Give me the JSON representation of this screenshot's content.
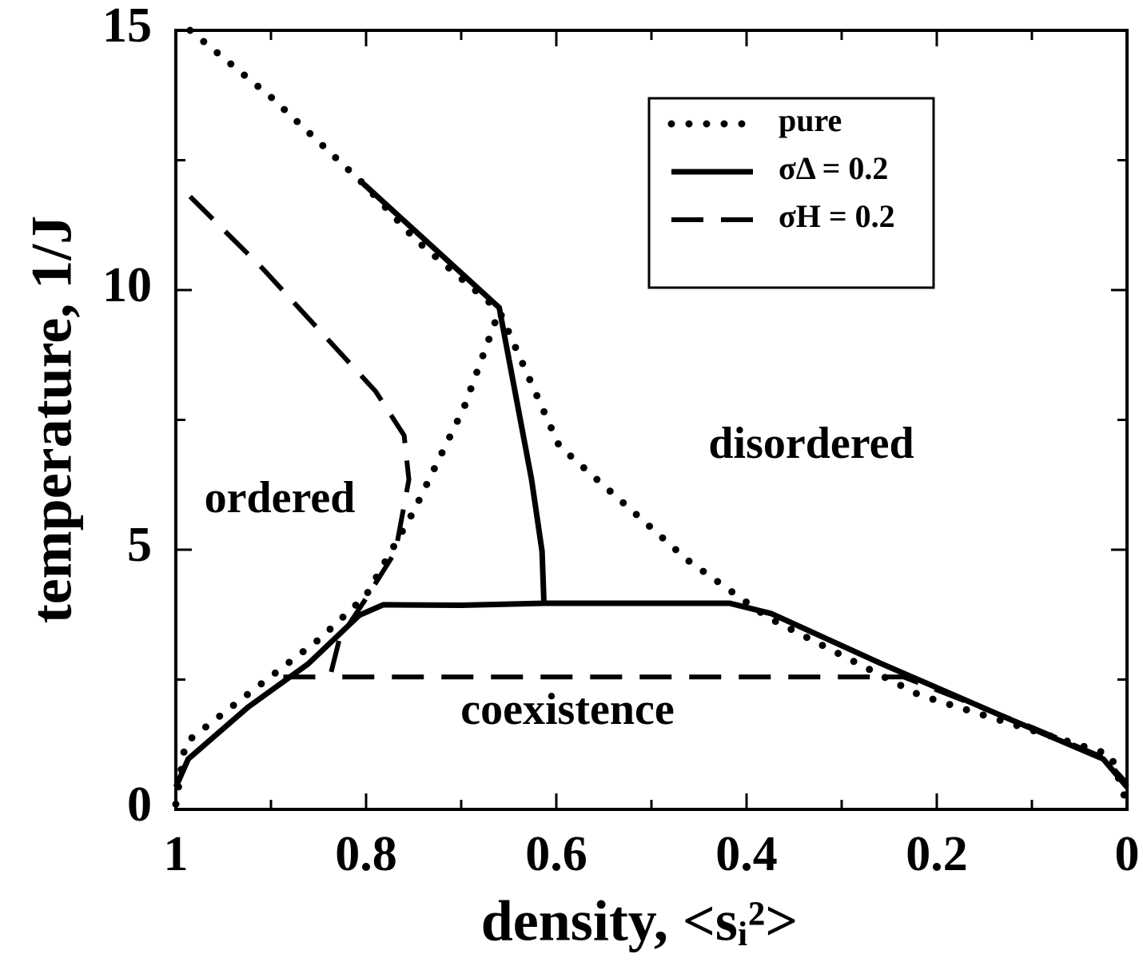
{
  "chart_data": {
    "type": "line",
    "x_label": "density, <sᵢ²>",
    "y_label": "temperature, 1/J",
    "xlim": [
      1,
      0
    ],
    "ylim": [
      0,
      15
    ],
    "xticks": [
      1,
      0.8,
      0.6,
      0.4,
      0.2,
      0
    ],
    "xminor": [
      0.9,
      0.7,
      0.5,
      0.3,
      0.1
    ],
    "yticks": [
      0,
      5,
      10,
      15
    ],
    "yminor": [
      2.5,
      7.5,
      12.5
    ],
    "legend": "upper right",
    "annotations": [
      "ordered",
      "disordered",
      "coexistence"
    ],
    "series": [
      {
        "name": "pure",
        "color": "#000000",
        "style": "dotted",
        "x": [
          1,
          0.99,
          0.92,
          0.849,
          0.8,
          0.75,
          0.697,
          0.66,
          0.597,
          0.462,
          0.378,
          0.218,
          0.017,
          0,
          null,
          0.985,
          0.899,
          0.803,
          0.748,
          0.66
        ],
        "values": [
          0.1,
          1.28,
          2.28,
          3.28,
          4.12,
          5.74,
          7.74,
          9.6,
          7.0,
          4.8,
          3.7,
          2.2,
          1.05,
          0.1,
          null,
          15,
          13.7,
          12.05,
          10.97,
          9.6
        ]
      },
      {
        "name": "σΔ = 0.2",
        "color": "#000000",
        "style": "solid",
        "x": [
          1,
          0.987,
          0.924,
          0.861,
          0.807,
          0.782,
          0.7,
          0.613,
          0.418,
          0.374,
          0.26,
          0.134,
          0.025,
          0,
          null,
          0.613,
          0.615,
          0.626,
          0.66,
          0.803
        ],
        "values": [
          0.43,
          0.97,
          1.97,
          2.8,
          3.74,
          3.94,
          3.93,
          3.97,
          3.97,
          3.77,
          2.82,
          1.82,
          0.97,
          0.43,
          null,
          3.97,
          4.97,
          6.35,
          9.66,
          12.05
        ]
      },
      {
        "name": "σH = 0.2",
        "color": "#000000",
        "style": "dashed",
        "x": [
          0.985,
          0.908,
          0.79,
          0.76,
          0.755,
          0.769,
          0.798,
          0.828,
          0.838,
          0.235,
          0.2,
          0.1,
          0.025,
          0,
          null,
          0.887,
          0.838
        ],
        "values": [
          11.8,
          10.4,
          8.05,
          7.2,
          6.35,
          4.97,
          4.12,
          3.28,
          2.55,
          2.55,
          2.3,
          1.58,
          1.0,
          0.5,
          null,
          2.55,
          2.55
        ]
      }
    ]
  }
}
